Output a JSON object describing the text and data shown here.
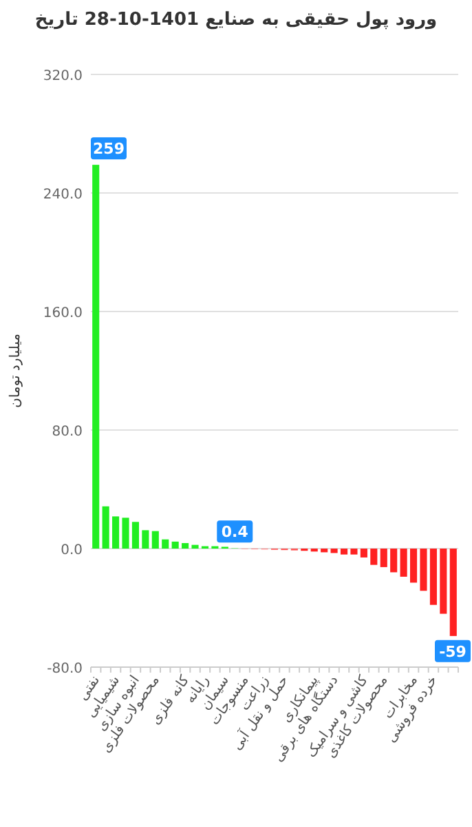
{
  "chart_data": {
    "type": "bar",
    "title": "ورود پول حقیقی به صنایع 1401-10-28 تاریخ",
    "ylabel": "میلیارد تومان",
    "categories": [
      "نفتی",
      null,
      "شیمیایی",
      null,
      "انبوه سازی",
      null,
      "محصولات فلزی",
      null,
      null,
      "کانه فلزی",
      null,
      "رایانه",
      null,
      "سیمان",
      null,
      "منسوجات",
      null,
      "زراعت",
      null,
      "حمل و نقل آبی",
      null,
      null,
      "پیمانکاری",
      null,
      "دستگاه های برقی",
      null,
      null,
      "کاشی و سرامیک",
      null,
      "محصولات کاغذی",
      null,
      null,
      "مخابرات",
      null,
      "خرده فروشی",
      null,
      null
    ],
    "values": [
      259,
      28.5,
      21.7,
      20.8,
      18,
      12.4,
      11.8,
      6.2,
      4.7,
      3.7,
      2.5,
      1.6,
      1.6,
      1.2,
      0.4,
      -0.3,
      -0.5,
      -0.6,
      -0.8,
      -1,
      -1.2,
      -1.5,
      -2,
      -2.5,
      -3,
      -4,
      -4,
      -6,
      -11,
      -12.5,
      -16,
      -19,
      -23,
      -28.5,
      -38,
      -44,
      -59
    ],
    "colors": [
      "#22ee22",
      "#22ee22",
      "#22ee22",
      "#22ee22",
      "#22ee22",
      "#22ee22",
      "#22ee22",
      "#22ee22",
      "#22ee22",
      "#22ee22",
      "#22ee22",
      "#22ee22",
      "#22ee22",
      "#22ee22",
      "#88ee88",
      "#ff8888",
      "#ff8888",
      "#ff8888",
      "#ff5555",
      "#ff5555",
      "#ff5555",
      "#ff2222",
      "#ff2222",
      "#ff2222",
      "#ff2222",
      "#ff2222",
      "#ff2222",
      "#ff2222",
      "#ff2222",
      "#ff2222",
      "#ff2222",
      "#ff2222",
      "#ff2222",
      "#ff2222",
      "#ff2222",
      "#ff2222",
      "#ff2222"
    ],
    "value_labels": [
      "259",
      null,
      null,
      null,
      null,
      null,
      null,
      null,
      null,
      null,
      null,
      null,
      null,
      null,
      "0.4",
      null,
      null,
      null,
      null,
      null,
      null,
      null,
      null,
      null,
      null,
      null,
      null,
      null,
      null,
      null,
      null,
      null,
      null,
      null,
      null,
      null,
      "-59"
    ],
    "ylim": [
      -80,
      320
    ],
    "yticks": [
      {
        "value": 320,
        "label": "320.0"
      },
      {
        "value": 240,
        "label": "240.0"
      },
      {
        "value": 160,
        "label": "160.0"
      },
      {
        "value": 80,
        "label": "80.0"
      },
      {
        "value": 0,
        "label": "0.0"
      },
      {
        "value": -80,
        "label": "-80.0"
      }
    ],
    "grid": "y"
  }
}
